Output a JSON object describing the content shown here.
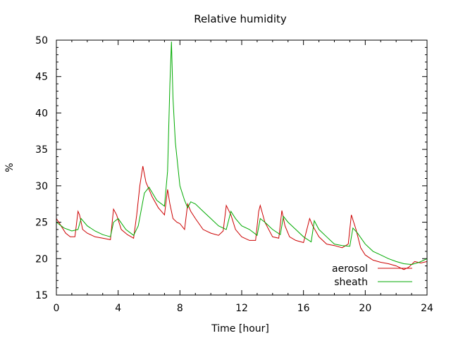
{
  "chart_data": {
    "type": "line",
    "title": "Relative humidity",
    "xlabel": "Time [hour]",
    "ylabel": "%",
    "xlim": [
      0,
      24
    ],
    "ylim": [
      15,
      50
    ],
    "x_ticks": [
      0,
      4,
      8,
      12,
      16,
      20,
      24
    ],
    "y_ticks": [
      15,
      20,
      25,
      30,
      35,
      40,
      45,
      50
    ],
    "grid": false,
    "legend_position": "bottom-right",
    "series": [
      {
        "name": "aerosol",
        "color": "#cc0000",
        "x": [
          0,
          0.3,
          0.6,
          0.9,
          1.2,
          1.4,
          1.5,
          1.7,
          2.0,
          2.5,
          3.0,
          3.5,
          3.7,
          3.9,
          4.2,
          4.6,
          5.0,
          5.2,
          5.4,
          5.6,
          5.8,
          6.2,
          6.6,
          7.0,
          7.2,
          7.35,
          7.55,
          7.8,
          8.0,
          8.3,
          8.5,
          8.7,
          9.0,
          9.5,
          10.0,
          10.5,
          10.8,
          11.0,
          11.3,
          11.6,
          12.0,
          12.5,
          12.9,
          13.1,
          13.2,
          13.5,
          14.0,
          14.4,
          14.6,
          14.8,
          15.1,
          15.5,
          16.0,
          16.4,
          16.6,
          17.0,
          17.5,
          18.0,
          18.5,
          18.9,
          19.1,
          19.4,
          19.7,
          20.0,
          20.5,
          21.0,
          21.5,
          22.0,
          22.5,
          22.8,
          23.2,
          23.6,
          24.0
        ],
        "y": [
          25.5,
          24.5,
          23.5,
          23.0,
          23.0,
          26.5,
          26.0,
          24.0,
          23.5,
          23.0,
          22.8,
          22.6,
          26.8,
          26.0,
          24.0,
          23.3,
          22.8,
          26.0,
          30.0,
          32.7,
          30.5,
          28.5,
          27.0,
          26.0,
          29.5,
          27.5,
          25.5,
          25.0,
          24.8,
          24.0,
          27.5,
          26.5,
          25.5,
          24.0,
          23.5,
          23.2,
          23.8,
          27.3,
          26.0,
          24.0,
          23.0,
          22.5,
          22.5,
          26.5,
          27.3,
          25.0,
          23.0,
          22.8,
          26.6,
          24.5,
          23.0,
          22.5,
          22.2,
          25.5,
          24.5,
          23.0,
          22.0,
          21.8,
          21.5,
          22.0,
          26.0,
          24.0,
          21.5,
          20.5,
          19.8,
          19.5,
          19.3,
          19.0,
          18.5,
          18.8,
          19.6,
          19.4,
          19.6
        ]
      },
      {
        "name": "sheath",
        "color": "#00aa00",
        "x": [
          0,
          0.5,
          1.0,
          1.4,
          1.6,
          2.0,
          2.5,
          3.0,
          3.5,
          3.7,
          4.0,
          4.5,
          5.0,
          5.3,
          5.7,
          6.0,
          6.5,
          7.0,
          7.2,
          7.35,
          7.45,
          7.55,
          7.7,
          8.0,
          8.3,
          8.5,
          8.7,
          9.0,
          9.5,
          10.0,
          10.5,
          11.0,
          11.3,
          11.6,
          12.0,
          12.5,
          13.0,
          13.2,
          13.5,
          14.0,
          14.5,
          14.7,
          15.0,
          15.5,
          16.0,
          16.5,
          16.7,
          17.0,
          17.5,
          18.0,
          18.5,
          19.0,
          19.2,
          19.5,
          20.0,
          20.5,
          21.0,
          21.5,
          22.0,
          22.5,
          23.0,
          23.5,
          24.0
        ],
        "y": [
          25.0,
          24.2,
          23.8,
          24.0,
          25.5,
          24.5,
          23.8,
          23.3,
          23.0,
          25.0,
          25.5,
          24.0,
          23.2,
          24.5,
          29.0,
          29.8,
          28.0,
          27.2,
          32.0,
          44.0,
          49.8,
          42.0,
          36.0,
          30.0,
          28.0,
          27.0,
          27.8,
          27.5,
          26.5,
          25.5,
          24.5,
          24.0,
          26.5,
          25.5,
          24.5,
          24.0,
          23.2,
          25.5,
          25.0,
          24.0,
          23.3,
          25.8,
          25.0,
          24.0,
          23.0,
          22.3,
          25.2,
          24.0,
          23.0,
          22.0,
          21.8,
          21.7,
          24.2,
          23.5,
          22.0,
          21.0,
          20.5,
          20.0,
          19.6,
          19.3,
          19.2,
          19.5,
          20.0
        ]
      }
    ]
  }
}
